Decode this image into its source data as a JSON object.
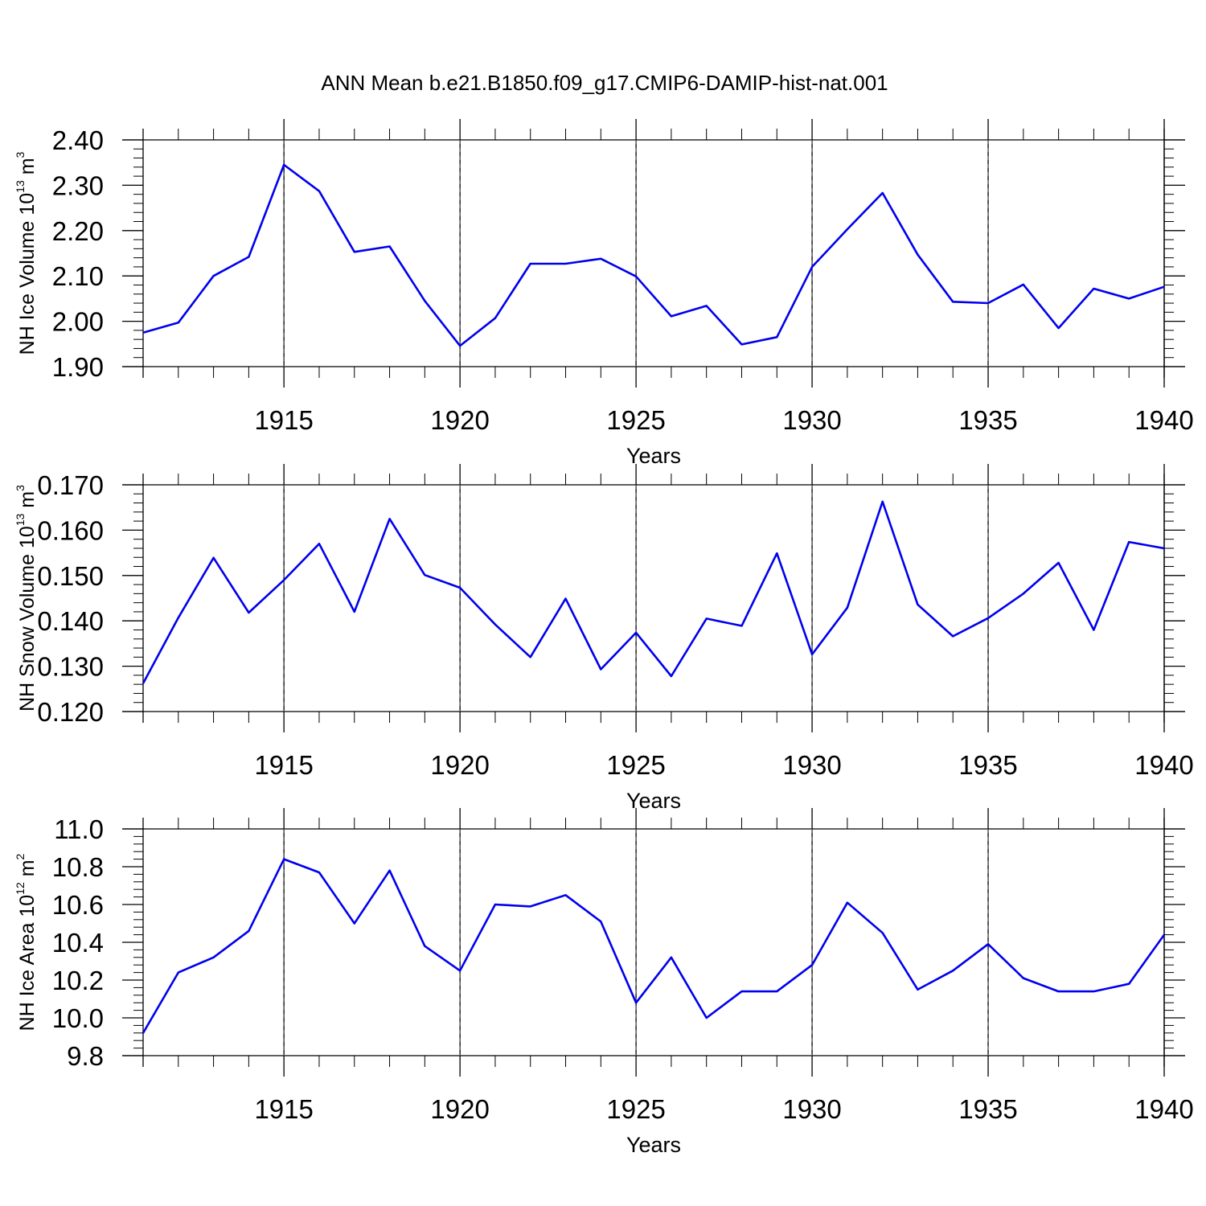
{
  "figure": {
    "title": "ANN Mean b.e21.B1850.f09_g17.CMIP6-DAMIP-hist-nat.001"
  },
  "chart_data": [
    {
      "type": "line",
      "ylabel": {
        "main": "NH Ice Volume 10",
        "exp": "13",
        "unit": " m",
        "unit_exp": "3"
      },
      "xlabel": "Years",
      "x": [
        1911,
        1912,
        1913,
        1914,
        1915,
        1916,
        1917,
        1918,
        1919,
        1920,
        1921,
        1922,
        1923,
        1924,
        1925,
        1926,
        1927,
        1928,
        1929,
        1930,
        1931,
        1932,
        1933,
        1934,
        1935,
        1936,
        1937,
        1938,
        1939,
        1940
      ],
      "y": [
        1.975,
        1.997,
        2.1,
        2.142,
        2.345,
        2.287,
        2.153,
        2.165,
        2.045,
        1.946,
        2.007,
        2.127,
        2.127,
        2.138,
        2.099,
        2.011,
        2.034,
        1.949,
        1.965,
        2.12,
        2.203,
        2.283,
        2.147,
        2.043,
        2.04,
        2.081,
        1.985,
        2.072,
        2.05,
        2.076
      ],
      "xlim": [
        1911,
        1940
      ],
      "ylim": [
        1.9,
        2.4
      ],
      "yticks": [
        1.9,
        2.0,
        2.1,
        2.2,
        2.3,
        2.4
      ],
      "ytick_labels": [
        "1.90",
        "2.00",
        "2.10",
        "2.20",
        "2.30",
        "2.40"
      ],
      "xticks": [
        1915,
        1920,
        1925,
        1930,
        1935,
        1940
      ],
      "xtick_labels": [
        "1915",
        "1920",
        "1925",
        "1930",
        "1935",
        "1940"
      ],
      "line_color": "#0000ee",
      "grid": "vertical dashed"
    },
    {
      "type": "line",
      "ylabel": {
        "main": "NH Snow Volume 10",
        "exp": "13",
        "unit": " m",
        "unit_exp": "3"
      },
      "xlabel": "Years",
      "x": [
        1911,
        1912,
        1913,
        1914,
        1915,
        1916,
        1917,
        1918,
        1919,
        1920,
        1921,
        1922,
        1923,
        1924,
        1925,
        1926,
        1927,
        1928,
        1929,
        1930,
        1931,
        1932,
        1933,
        1934,
        1935,
        1936,
        1937,
        1938,
        1939,
        1940
      ],
      "y": [
        0.1262,
        0.1407,
        0.1539,
        0.1418,
        0.149,
        0.157,
        0.142,
        0.1625,
        0.1501,
        0.1473,
        0.1392,
        0.132,
        0.1449,
        0.1293,
        0.1374,
        0.1278,
        0.1405,
        0.1389,
        0.1549,
        0.1326,
        0.1429,
        0.1663,
        0.1436,
        0.1366,
        0.1406,
        0.146,
        0.1528,
        0.138,
        0.1574,
        0.156
      ],
      "xlim": [
        1911,
        1940
      ],
      "ylim": [
        0.12,
        0.17
      ],
      "yticks": [
        0.12,
        0.13,
        0.14,
        0.15,
        0.16,
        0.17
      ],
      "ytick_labels": [
        "0.120",
        "0.130",
        "0.140",
        "0.150",
        "0.160",
        "0.170"
      ],
      "xticks": [
        1915,
        1920,
        1925,
        1930,
        1935,
        1940
      ],
      "xtick_labels": [
        "1915",
        "1920",
        "1925",
        "1930",
        "1935",
        "1940"
      ],
      "line_color": "#0000ee",
      "grid": "vertical dashed"
    },
    {
      "type": "line",
      "ylabel": {
        "main": "NH Ice Area 10",
        "exp": "12",
        "unit": " m",
        "unit_exp": "2"
      },
      "xlabel": "Years",
      "x": [
        1911,
        1912,
        1913,
        1914,
        1915,
        1916,
        1917,
        1918,
        1919,
        1920,
        1921,
        1922,
        1923,
        1924,
        1925,
        1926,
        1927,
        1928,
        1929,
        1930,
        1931,
        1932,
        1933,
        1934,
        1935,
        1936,
        1937,
        1938,
        1939,
        1940
      ],
      "y": [
        9.92,
        10.24,
        10.32,
        10.46,
        10.84,
        10.77,
        10.5,
        10.78,
        10.38,
        10.25,
        10.6,
        10.59,
        10.65,
        10.51,
        10.08,
        10.32,
        10.0,
        10.14,
        10.14,
        10.28,
        10.61,
        10.45,
        10.15,
        10.25,
        10.39,
        10.21,
        10.14,
        10.14,
        10.18,
        10.44
      ],
      "xlim": [
        1911,
        1940
      ],
      "ylim": [
        9.8,
        11.0
      ],
      "yticks": [
        9.8,
        10.0,
        10.2,
        10.4,
        10.6,
        10.8,
        11.0
      ],
      "ytick_labels": [
        "9.8",
        "10.0",
        "10.2",
        "10.4",
        "10.6",
        "10.8",
        "11.0"
      ],
      "xticks": [
        1915,
        1920,
        1925,
        1930,
        1935,
        1940
      ],
      "xtick_labels": [
        "1915",
        "1920",
        "1925",
        "1930",
        "1935",
        "1940"
      ],
      "line_color": "#0000ee",
      "grid": "vertical dashed"
    }
  ]
}
